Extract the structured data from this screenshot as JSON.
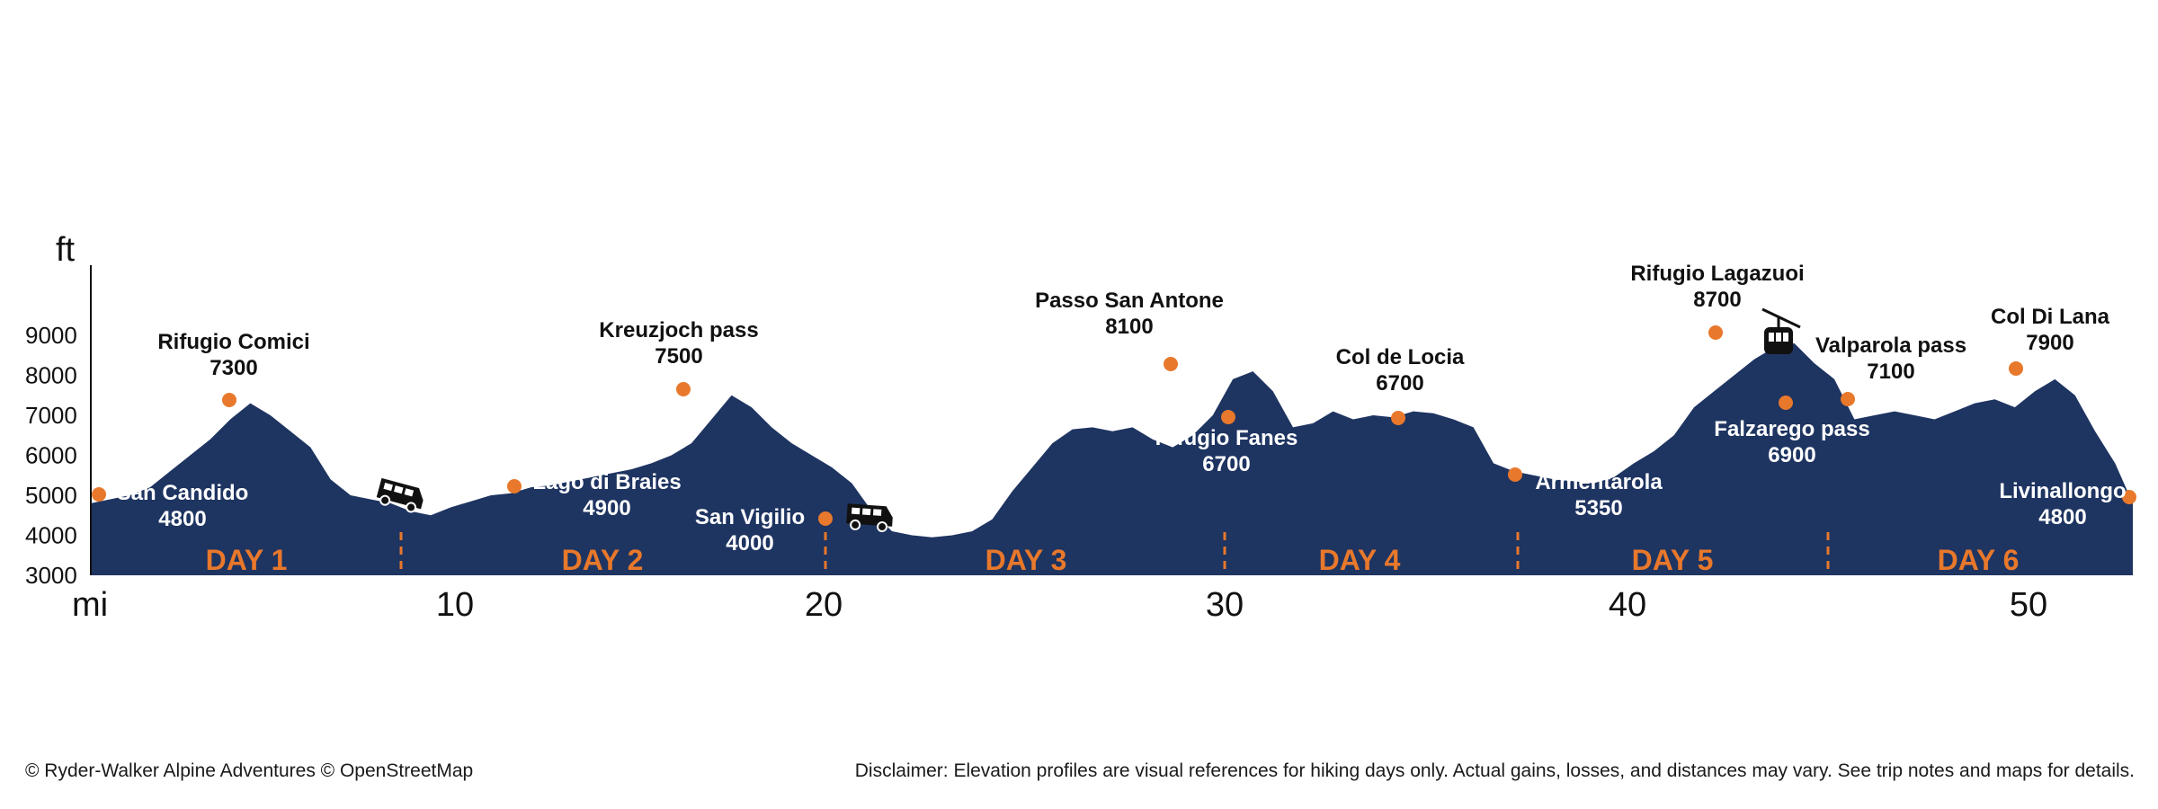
{
  "chart_data": {
    "type": "area",
    "y_unit": "ft",
    "x_unit": "mi",
    "ylim": [
      3000,
      9000
    ],
    "yticks": [
      3000,
      4000,
      5000,
      6000,
      7000,
      8000,
      9000
    ],
    "xticks": [
      10,
      20,
      30,
      40,
      50
    ],
    "xlim": [
      0,
      51
    ],
    "colors": {
      "fill": "#1e3461",
      "accent": "#e8782b",
      "text": "#111111"
    },
    "profile": [
      [
        0,
        4800
      ],
      [
        0.5,
        4900
      ],
      [
        1,
        5000
      ],
      [
        1.5,
        5200
      ],
      [
        2,
        5600
      ],
      [
        2.5,
        6000
      ],
      [
        3,
        6400
      ],
      [
        3.5,
        6900
      ],
      [
        4,
        7300
      ],
      [
        4.5,
        7000
      ],
      [
        5,
        6600
      ],
      [
        5.5,
        6200
      ],
      [
        6,
        5400
      ],
      [
        6.5,
        5000
      ],
      [
        7,
        4900
      ],
      [
        7.5,
        4800
      ],
      [
        8,
        4600
      ],
      [
        8.5,
        4500
      ],
      [
        9,
        4700
      ],
      [
        9.5,
        4850
      ],
      [
        10,
        5000
      ],
      [
        10.5,
        5050
      ],
      [
        11,
        5200
      ],
      [
        11.5,
        5250
      ],
      [
        12,
        5350
      ],
      [
        12.5,
        5450
      ],
      [
        13,
        5550
      ],
      [
        13.5,
        5650
      ],
      [
        14,
        5800
      ],
      [
        14.5,
        6000
      ],
      [
        15,
        6300
      ],
      [
        15.5,
        6900
      ],
      [
        16,
        7500
      ],
      [
        16.5,
        7200
      ],
      [
        17,
        6700
      ],
      [
        17.5,
        6300
      ],
      [
        18,
        6000
      ],
      [
        18.5,
        5700
      ],
      [
        19,
        5300
      ],
      [
        19.5,
        4600
      ],
      [
        20,
        4100
      ],
      [
        20.5,
        4000
      ],
      [
        21,
        3950
      ],
      [
        21.5,
        4000
      ],
      [
        22,
        4100
      ],
      [
        22.5,
        4400
      ],
      [
        23,
        5100
      ],
      [
        23.5,
        5700
      ],
      [
        24,
        6300
      ],
      [
        24.5,
        6650
      ],
      [
        25,
        6700
      ],
      [
        25.5,
        6600
      ],
      [
        26,
        6700
      ],
      [
        26.5,
        6400
      ],
      [
        27,
        6200
      ],
      [
        27.5,
        6500
      ],
      [
        28,
        7000
      ],
      [
        28.5,
        7900
      ],
      [
        29,
        8100
      ],
      [
        29.5,
        7600
      ],
      [
        30,
        6700
      ],
      [
        30.5,
        6800
      ],
      [
        31,
        7100
      ],
      [
        31.5,
        6900
      ],
      [
        32,
        7000
      ],
      [
        32.5,
        6950
      ],
      [
        33,
        7100
      ],
      [
        33.5,
        7050
      ],
      [
        34,
        6900
      ],
      [
        34.5,
        6700
      ],
      [
        35,
        5800
      ],
      [
        35.5,
        5600
      ],
      [
        36,
        5500
      ],
      [
        36.5,
        5400
      ],
      [
        37,
        5350
      ],
      [
        37.5,
        5300
      ],
      [
        38,
        5450
      ],
      [
        38.5,
        5800
      ],
      [
        39,
        6100
      ],
      [
        39.5,
        6500
      ],
      [
        40,
        7200
      ],
      [
        40.5,
        7600
      ],
      [
        41,
        8000
      ],
      [
        41.5,
        8400
      ],
      [
        42,
        8700
      ],
      [
        42.5,
        8800
      ],
      [
        43,
        8300
      ],
      [
        43.5,
        7900
      ],
      [
        44,
        6900
      ],
      [
        44.5,
        7000
      ],
      [
        45,
        7100
      ],
      [
        45.5,
        7000
      ],
      [
        46,
        6900
      ],
      [
        46.5,
        7100
      ],
      [
        47,
        7300
      ],
      [
        47.5,
        7400
      ],
      [
        48,
        7200
      ],
      [
        48.5,
        7600
      ],
      [
        49,
        7900
      ],
      [
        49.5,
        7500
      ],
      [
        50,
        6600
      ],
      [
        50.5,
        5800
      ],
      [
        51,
        4800
      ]
    ],
    "points": [
      {
        "mi": 0,
        "ft": 4800,
        "name": "San Candido",
        "elev": "4800"
      },
      {
        "mi": 4,
        "ft": 7300,
        "name": "Rifugio Comici",
        "elev": "7300"
      },
      {
        "mi": 10.9,
        "ft": 5100,
        "name": "Lago di Braies",
        "elev": "4900"
      },
      {
        "mi": 16,
        "ft": 7500,
        "name": "Kreuzjoch pass",
        "elev": "7500"
      },
      {
        "mi": 20,
        "ft": 4300,
        "name": "San Vigilio",
        "elev": "4000"
      },
      {
        "mi": 29,
        "ft": 8100,
        "name": "Passo San Antone",
        "elev": "8100"
      },
      {
        "mi": 30.5,
        "ft": 6800,
        "name": "Rifugio Fanes",
        "elev": "6700"
      },
      {
        "mi": 35.0,
        "ft": 6800,
        "name": "Col de Locia",
        "elev": "6700"
      },
      {
        "mi": 38.0,
        "ft": 5450,
        "name": "Armentarola",
        "elev": "5350"
      },
      {
        "mi": 42.3,
        "ft": 8900,
        "name": "Rifugio Lagazuoi",
        "elev": "8700"
      },
      {
        "mi": 44.0,
        "ft": 7150,
        "name": "Falzarego pass",
        "elev": "6900"
      },
      {
        "mi": 45.5,
        "ft": 7250,
        "name": "Valparola pass",
        "elev": "7100"
      },
      {
        "mi": 49.0,
        "ft": 7900,
        "name": "Col Di Lana",
        "elev": "7900"
      },
      {
        "mi": 51,
        "ft": 4800,
        "name": "Livinallongo",
        "elev": "4800"
      }
    ],
    "days": [
      {
        "label": "DAY 1",
        "from": 0,
        "to": 8.2
      },
      {
        "label": "DAY 2",
        "from": 8.2,
        "to": 19.5
      },
      {
        "label": "DAY 3",
        "from": 19.5,
        "to": 29.5
      },
      {
        "label": "DAY 4",
        "from": 29.5,
        "to": 37.3
      },
      {
        "label": "DAY 5",
        "from": 37.3,
        "to": 45.2
      },
      {
        "label": "DAY 6",
        "from": 45.2,
        "to": 51
      }
    ],
    "transport": [
      {
        "icon": "van-icon",
        "mi": 8.1,
        "ft": 4500
      },
      {
        "icon": "van-icon",
        "mi": 20.6,
        "ft": 4050
      },
      {
        "icon": "cable-car-icon",
        "mi": 43.4,
        "ft": 8600
      }
    ]
  },
  "footer": {
    "credits": "© Ryder-Walker Alpine Adventures © OpenStreetMap",
    "disclaimer": "Disclaimer: Elevation profiles are visual references for hiking days only. Actual gains, losses, and distances may vary. See trip notes and maps for details."
  }
}
